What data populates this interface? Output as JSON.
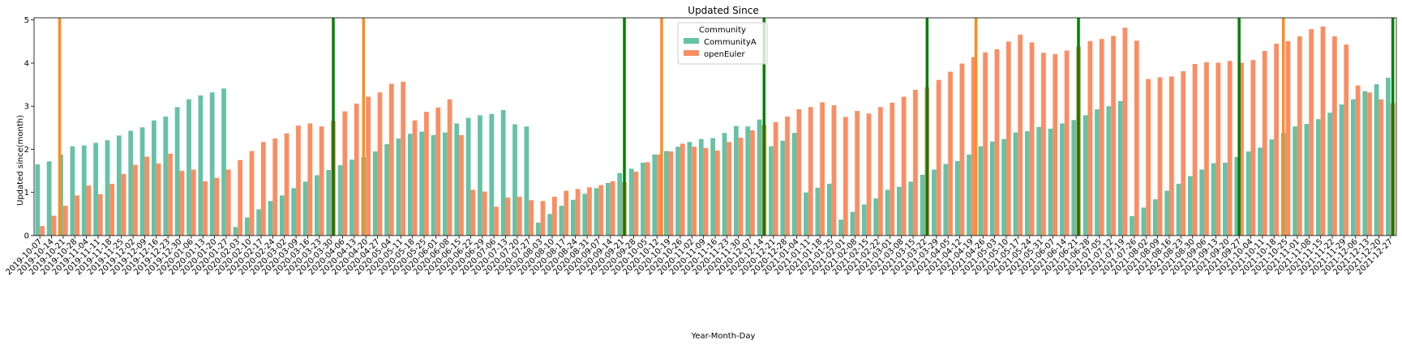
{
  "chart_data": {
    "type": "bar",
    "title": "Updated Since",
    "xlabel": "Year-Month-Day",
    "ylabel": "Updated since(month)",
    "ylim": [
      0,
      5.05
    ],
    "yticks": [
      0,
      1,
      2,
      3,
      4,
      5
    ],
    "legend": {
      "title": "Community",
      "placement": "top-center"
    },
    "categories": [
      "2019-10-07",
      "2019-10-14",
      "2019-10-21",
      "2019-10-28",
      "2019-11-04",
      "2019-11-11",
      "2019-11-18",
      "2019-11-25",
      "2019-12-02",
      "2019-12-09",
      "2019-12-16",
      "2019-12-23",
      "2019-12-30",
      "2020-01-06",
      "2020-01-13",
      "2020-01-20",
      "2020-01-27",
      "2020-02-03",
      "2020-02-10",
      "2020-02-17",
      "2020-02-24",
      "2020-03-02",
      "2020-03-09",
      "2020-03-16",
      "2020-03-23",
      "2020-03-30",
      "2020-04-06",
      "2020-04-13",
      "2020-04-20",
      "2020-04-27",
      "2020-05-04",
      "2020-05-11",
      "2020-05-18",
      "2020-05-25",
      "2020-06-01",
      "2020-06-08",
      "2020-06-15",
      "2020-06-22",
      "2020-06-29",
      "2020-07-06",
      "2020-07-13",
      "2020-07-20",
      "2020-07-27",
      "2020-08-03",
      "2020-08-10",
      "2020-08-17",
      "2020-08-24",
      "2020-08-31",
      "2020-09-07",
      "2020-09-14",
      "2020-09-21",
      "2020-09-28",
      "2020-10-05",
      "2020-10-12",
      "2020-10-19",
      "2020-10-26",
      "2020-11-02",
      "2020-11-09",
      "2020-11-16",
      "2020-11-23",
      "2020-11-30",
      "2020-12-07",
      "2020-12-14",
      "2020-12-21",
      "2020-12-28",
      "2021-01-04",
      "2021-01-11",
      "2021-01-18",
      "2021-01-25",
      "2021-02-01",
      "2021-02-08",
      "2021-02-15",
      "2021-02-22",
      "2021-03-01",
      "2021-03-08",
      "2021-03-15",
      "2021-03-22",
      "2021-03-29",
      "2021-04-05",
      "2021-04-12",
      "2021-04-19",
      "2021-04-26",
      "2021-05-03",
      "2021-05-10",
      "2021-05-17",
      "2021-05-24",
      "2021-05-31",
      "2021-06-07",
      "2021-06-14",
      "2021-06-21",
      "2021-06-28",
      "2021-07-05",
      "2021-07-12",
      "2021-07-19",
      "2021-07-26",
      "2021-08-02",
      "2021-08-09",
      "2021-08-16",
      "2021-08-23",
      "2021-08-30",
      "2021-09-06",
      "2021-09-13",
      "2021-09-20",
      "2021-09-27",
      "2021-10-04",
      "2021-10-11",
      "2021-10-18",
      "2021-10-25",
      "2021-11-01",
      "2021-11-08",
      "2021-11-15",
      "2021-11-22",
      "2021-11-29",
      "2021-12-06",
      "2021-12-13",
      "2021-12-20",
      "2021-12-27"
    ],
    "series": [
      {
        "name": "CommunityA",
        "color": "#66c2a5",
        "values": [
          1.65,
          1.72,
          1.88,
          2.07,
          2.09,
          2.15,
          2.21,
          2.32,
          2.43,
          2.51,
          2.67,
          2.76,
          2.98,
          3.16,
          3.25,
          3.32,
          3.41,
          0.2,
          0.42,
          0.61,
          0.8,
          0.93,
          1.1,
          1.25,
          1.4,
          1.52,
          1.63,
          1.76,
          1.82,
          1.95,
          2.12,
          2.25,
          2.36,
          2.41,
          2.33,
          2.39,
          2.6,
          2.73,
          2.79,
          2.82,
          2.91,
          2.58,
          2.53,
          0.3,
          0.5,
          0.69,
          0.83,
          0.97,
          1.1,
          1.22,
          1.45,
          1.55,
          1.69,
          1.88,
          1.96,
          2.06,
          2.17,
          2.24,
          2.26,
          2.38,
          2.54,
          2.53,
          2.69,
          2.07,
          2.2,
          2.38,
          1.0,
          1.11,
          1.2,
          0.37,
          0.55,
          0.72,
          0.86,
          1.06,
          1.13,
          1.25,
          1.41,
          1.53,
          1.66,
          1.73,
          1.88,
          2.07,
          2.18,
          2.24,
          2.39,
          2.42,
          2.52,
          2.48,
          2.6,
          2.68,
          2.79,
          2.93,
          3.0,
          3.12,
          0.45,
          0.65,
          0.84,
          1.04,
          1.2,
          1.38,
          1.53,
          1.68,
          1.69,
          1.82,
          1.95,
          2.04,
          2.23,
          2.38,
          2.53,
          2.59,
          2.7,
          2.85,
          3.04,
          3.16,
          3.35,
          3.51,
          3.66
        ]
      },
      {
        "name": "openEuler",
        "color": "#fc8d62",
        "values": [
          0.22,
          0.46,
          0.69,
          0.93,
          1.16,
          0.96,
          1.2,
          1.43,
          1.64,
          1.83,
          1.67,
          1.9,
          1.5,
          1.53,
          1.26,
          1.34,
          1.53,
          1.75,
          1.96,
          2.17,
          2.25,
          2.37,
          2.55,
          2.6,
          2.53,
          2.66,
          2.88,
          3.06,
          3.22,
          3.32,
          3.52,
          3.57,
          2.67,
          2.87,
          2.97,
          3.16,
          2.33,
          1.06,
          1.02,
          0.67,
          0.88,
          0.9,
          0.82,
          0.8,
          0.9,
          1.04,
          1.08,
          1.12,
          1.17,
          1.26,
          1.24,
          1.48,
          1.7,
          1.88,
          1.95,
          2.13,
          2.06,
          2.03,
          1.97,
          2.17,
          2.27,
          2.44,
          2.56,
          2.63,
          2.76,
          2.93,
          2.98,
          3.09,
          3.02,
          2.75,
          2.89,
          2.83,
          2.98,
          3.08,
          3.22,
          3.38,
          3.44,
          3.61,
          3.8,
          3.99,
          4.14,
          4.25,
          4.32,
          4.5,
          4.66,
          4.48,
          4.24,
          4.21,
          4.29,
          4.38,
          4.51,
          4.56,
          4.63,
          4.82,
          4.52,
          3.63,
          3.67,
          3.69,
          3.81,
          3.98,
          4.02,
          4.01,
          4.05,
          4.01,
          4.07,
          4.28,
          4.45,
          4.51,
          4.62,
          4.79,
          4.85,
          4.62,
          4.43,
          3.48,
          3.32,
          3.16,
          3.07
        ]
      }
    ],
    "vlines": [
      {
        "index": 2.2,
        "color": "#ff8c1a"
      },
      {
        "index": 25.7,
        "color": "#008000"
      },
      {
        "index": 28.3,
        "color": "#ff8c1a"
      },
      {
        "index": 50.7,
        "color": "#008000"
      },
      {
        "index": 53.9,
        "color": "#ff8c1a"
      },
      {
        "index": 62.7,
        "color": "#008000"
      },
      {
        "index": 76.7,
        "color": "#008000"
      },
      {
        "index": 80.9,
        "color": "#ff8c1a"
      },
      {
        "index": 89.7,
        "color": "#008000"
      },
      {
        "index": 103.5,
        "color": "#008000"
      },
      {
        "index": 107.3,
        "color": "#ff8c1a"
      },
      {
        "index": 116.7,
        "color": "#008000"
      }
    ]
  }
}
